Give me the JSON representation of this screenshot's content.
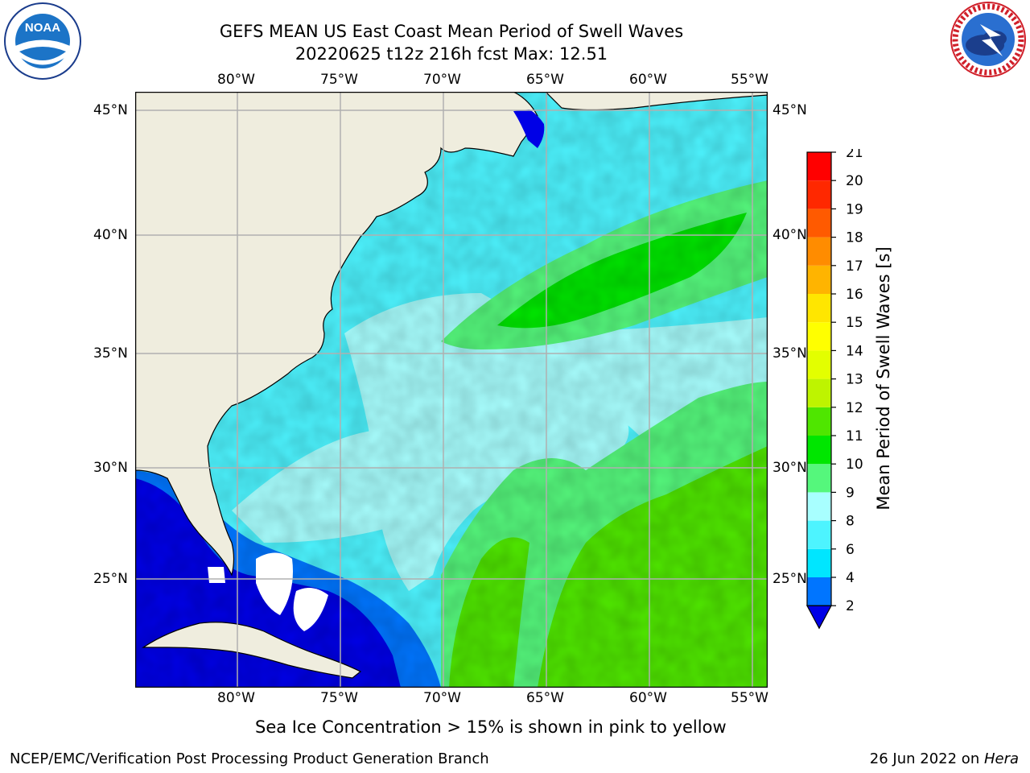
{
  "title": {
    "line1": "GEFS MEAN US East Coast Mean Period of Swell Waves",
    "line2": "20220625 t12z 216h fcst   Max: 12.51"
  },
  "logos": {
    "left": {
      "name": "noaa-logo",
      "text": "NOAA",
      "ring_text": "NATIONAL OCEANIC AND ATMOSPHERIC ADMINISTRATION · U.S. DEPARTMENT OF COMMERCE"
    },
    "right": {
      "name": "nws-logo",
      "ring_text": "NATIONAL WEATHER SERVICE"
    }
  },
  "map": {
    "lon_ticks": [
      "80°W",
      "75°W",
      "70°W",
      "65°W",
      "60°W",
      "55°W"
    ],
    "lat_ticks": [
      "45°N",
      "40°N",
      "35°N",
      "30°N",
      "25°N"
    ],
    "lon_range": [
      -85,
      -54.3
    ],
    "lat_range": [
      20.3,
      45.8
    ],
    "colors": {
      "land": "#efedde",
      "coast": "#000000",
      "grid": "#b0b0b0"
    }
  },
  "colorbar": {
    "label": "Mean Period of Swell Waves [s]",
    "ticks": [
      "2",
      "4",
      "6",
      "8",
      "9",
      "10",
      "11",
      "12",
      "13",
      "14",
      "15",
      "16",
      "17",
      "18",
      "19",
      "20",
      "21"
    ],
    "colors": [
      "#0000e6",
      "#0075ff",
      "#00e6ff",
      "#4df4ff",
      "#a8ffff",
      "#55f77c",
      "#00e600",
      "#4fe600",
      "#bef400",
      "#e3ff00",
      "#ffff00",
      "#ffe600",
      "#ffb400",
      "#ff8c00",
      "#ff5a00",
      "#ff2800",
      "#ff0000"
    ]
  },
  "caption": "Sea Ice Concentration > 15% is shown in pink to yellow",
  "footer": {
    "left": "NCEP/EMC/Verification Post Processing Product Generation Branch",
    "right_date": "26 Jun 2022 on ",
    "right_host": "Hera"
  }
}
